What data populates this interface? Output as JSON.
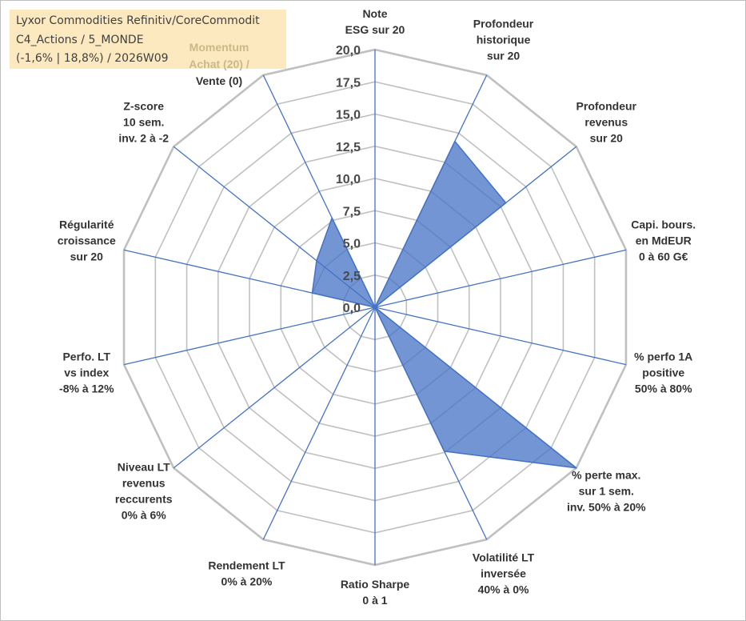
{
  "info": {
    "line1": "Lyxor Commodities Refinitiv/CoreCommodit",
    "line2": "C4_Actions / 5_MONDE",
    "line3": "(-1,6% | 18,8%) / 2026W09",
    "momentum1": "Momentum",
    "momentum2": "Achat (20) /",
    "momentum3": "Vente (0)"
  },
  "colors": {
    "grid": "#c0c0c0",
    "spoke": "#4472c4",
    "fill": "#4472c4",
    "background": "#ffffff",
    "info_bg": "#fde9bf"
  },
  "chart_data": {
    "type": "radar",
    "rmin": 0,
    "rmax": 20,
    "ticks": [
      "0,0",
      "2,5",
      "5,0",
      "7,5",
      "10,0",
      "12,5",
      "15,0",
      "17,5",
      "20,0"
    ],
    "categories": [
      [
        "Note",
        "ESG sur 20"
      ],
      [
        "Profondeur",
        "historique",
        "sur 20"
      ],
      [
        "Profondeur",
        "revenus",
        "sur 20"
      ],
      [
        "Capi. bours.",
        "en MdEUR",
        "0 à 60 G€"
      ],
      [
        "% perfo 1A",
        "positive",
        "50% à 80%"
      ],
      [
        "% perte max.",
        "sur 1 sem.",
        "inv. 50% à 20%"
      ],
      [
        "Volatilité LT",
        "inversée",
        "40% à 0%"
      ],
      [
        "Ratio Sharpe",
        "0 à 1"
      ],
      [
        "Rendement LT",
        "0% à 20%"
      ],
      [
        "Niveau LT",
        "revenus",
        "reccurents",
        "0% à 6%"
      ],
      [
        "Perfo. LT",
        "vs index",
        "-8% à 12%"
      ],
      [
        "Régularité",
        "croissance",
        "sur 20"
      ],
      [
        "Z-score",
        "10 sem.",
        "inv. 2 à -2"
      ],
      [
        "Momentum",
        "Achat (20) /",
        "Vente (0)"
      ]
    ],
    "series": [
      {
        "name": "Lyxor Commodities Refinitiv/CoreCommodit",
        "values": [
          0,
          14.3,
          13.0,
          0,
          0,
          20.0,
          12.4,
          0,
          0,
          0,
          0,
          5.0,
          5.8,
          7.7
        ]
      }
    ]
  }
}
